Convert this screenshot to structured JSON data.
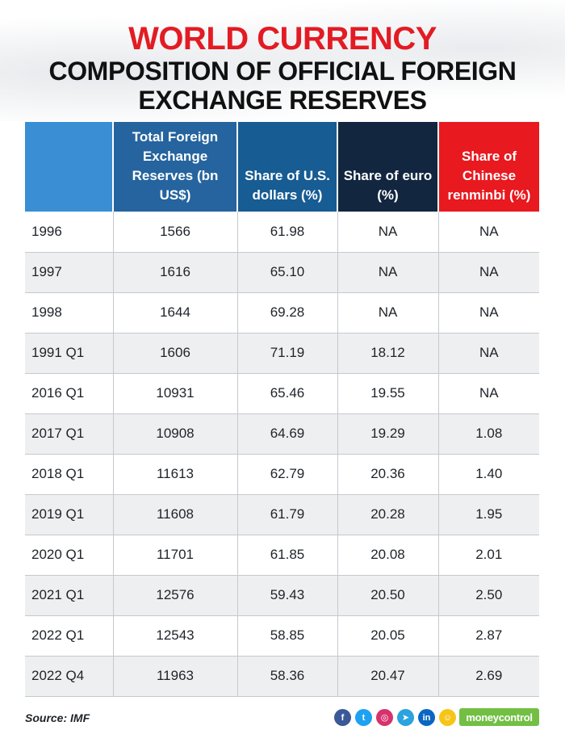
{
  "title": {
    "line1": "WORLD CURRENCY",
    "line2": "COMPOSITION OF OFFICIAL FOREIGN",
    "line3": "EXCHANGE RESERVES"
  },
  "chart_data": {
    "type": "table",
    "columns": [
      "",
      "Total Foreign Exchange Reserves (bn US$)",
      "Share of U.S. dollars (%)",
      "Share of euro (%)",
      "Share of Chinese renminbi (%)"
    ],
    "header_colors": [
      "#3a8ed3",
      "#25649e",
      "#175c93",
      "#12263f",
      "#e8191f"
    ],
    "rows": [
      [
        "1996",
        "1566",
        "61.98",
        "NA",
        "NA"
      ],
      [
        "1997",
        "1616",
        "65.10",
        "NA",
        "NA"
      ],
      [
        "1998",
        "1644",
        "69.28",
        "NA",
        "NA"
      ],
      [
        "1991 Q1",
        "1606",
        "71.19",
        "18.12",
        "NA"
      ],
      [
        "2016 Q1",
        "10931",
        "65.46",
        "19.55",
        "NA"
      ],
      [
        "2017 Q1",
        "10908",
        "64.69",
        "19.29",
        "1.08"
      ],
      [
        "2018 Q1",
        "11613",
        "62.79",
        "20.36",
        "1.40"
      ],
      [
        "2019 Q1",
        "11608",
        "61.79",
        "20.28",
        "1.95"
      ],
      [
        "2020 Q1",
        "11701",
        "61.85",
        "20.08",
        "2.01"
      ],
      [
        "2021 Q1",
        "12576",
        "59.43",
        "20.50",
        "2.50"
      ],
      [
        "2022 Q1",
        "12543",
        "58.85",
        "20.05",
        "2.87"
      ],
      [
        "2022 Q4",
        "11963",
        "58.36",
        "20.47",
        "2.69"
      ]
    ]
  },
  "footer": {
    "source": "Source: IMF",
    "social": [
      {
        "icon": "facebook-icon",
        "glyph": "f",
        "color": "#3b5998"
      },
      {
        "icon": "twitter-icon",
        "glyph": "t",
        "color": "#1da1f2"
      },
      {
        "icon": "instagram-icon",
        "glyph": "◎",
        "color": "#d6336c"
      },
      {
        "icon": "telegram-icon",
        "glyph": "➤",
        "color": "#2aa3df"
      },
      {
        "icon": "linkedin-icon",
        "glyph": "in",
        "color": "#0a66c2"
      },
      {
        "icon": "snapchat-icon",
        "glyph": "☺",
        "color": "#f5c518"
      }
    ],
    "logo": "moneycontrol"
  }
}
